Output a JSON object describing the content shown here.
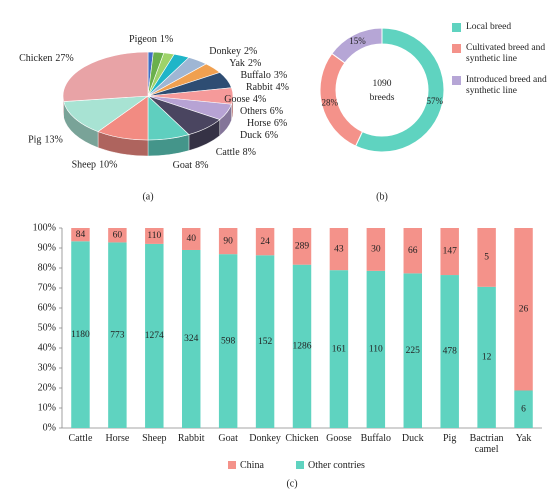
{
  "chart_data": [
    {
      "type": "pie3d",
      "caption": "(a)",
      "categories": [
        "Pigeon",
        "Donkey",
        "Yak",
        "Buffalo",
        "Rabbit",
        "Goose",
        "Others",
        "Horse",
        "Duck",
        "Cattle",
        "Goat",
        "Sheep",
        "Pig",
        "Chicken"
      ],
      "values": [
        1,
        2,
        2,
        3,
        4,
        4,
        6,
        6,
        6,
        8,
        8,
        10,
        13,
        27
      ],
      "value_labels": [
        "1%",
        "2%",
        "2%",
        "3%",
        "4%",
        "4%",
        "6%",
        "6%",
        "6%",
        "8%",
        "8%",
        "10%",
        "13%",
        "27%"
      ],
      "colors": [
        "#3f6fc4",
        "#6ab04c",
        "#9ed36a",
        "#1fb5c8",
        "#9fb6d4",
        "#f0a050",
        "#2e4d73",
        "#f59a9a",
        "#b7a3d4",
        "#4a4560",
        "#5fcfbf",
        "#f28b82",
        "#a8e3d3",
        "#e8a3a6"
      ]
    },
    {
      "type": "donut",
      "caption": "(b)",
      "categories": [
        "Local breed",
        "Cultivated breed and synthetic line",
        "Introduced breed and synthetic line"
      ],
      "values": [
        57,
        28,
        15
      ],
      "value_labels": [
        "57%",
        "28%",
        "15%"
      ],
      "colors": [
        "#5fd3c0",
        "#f4928a",
        "#b6a6d6"
      ],
      "total": 1090,
      "total_label": "breeds",
      "legend": "right"
    },
    {
      "type": "bar",
      "stacked": "percent",
      "caption": "(c)",
      "categories": [
        "Cattle",
        "Horse",
        "Sheep",
        "Rabbit",
        "Goat",
        "Donkey",
        "Chicken",
        "Goose",
        "Buffalo",
        "Duck",
        "Pig",
        "Bactrian camel",
        "Yak"
      ],
      "series": [
        {
          "name": "China",
          "color": "#f4928a",
          "values": [
            84,
            60,
            110,
            40,
            90,
            24,
            289,
            43,
            30,
            66,
            147,
            5,
            26
          ]
        },
        {
          "name": "Other contries",
          "color": "#5fd3c0",
          "values": [
            1180,
            773,
            1274,
            324,
            598,
            152,
            1286,
            161,
            110,
            225,
            478,
            12,
            6
          ]
        }
      ],
      "ylim": [
        0,
        100
      ],
      "yticks": [
        {
          "value": 0,
          "label": "0%"
        },
        {
          "value": 10,
          "label": "10%"
        },
        {
          "value": 20,
          "label": "20%"
        },
        {
          "value": 30,
          "label": "30%"
        },
        {
          "value": 40,
          "label": "40%"
        },
        {
          "value": 50,
          "label": "50%"
        },
        {
          "value": 60,
          "label": "60%"
        },
        {
          "value": 70,
          "label": "70%"
        },
        {
          "value": 80,
          "label": "80%"
        },
        {
          "value": 90,
          "label": "90%"
        },
        {
          "value": 100,
          "label": "100%"
        }
      ],
      "grid": false,
      "legend": "bottom"
    }
  ]
}
